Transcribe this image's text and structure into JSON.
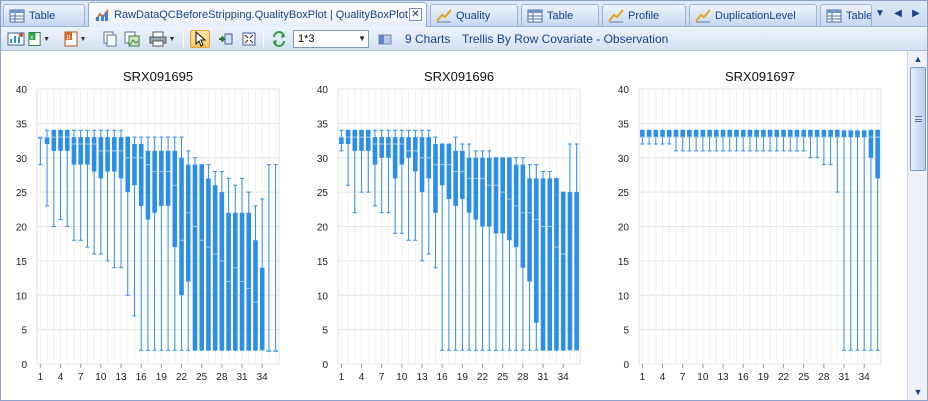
{
  "tabs": [
    {
      "label": "Table",
      "icon": "table-icon",
      "active": false
    },
    {
      "label": "RawDataQCBeforeStripping.QualityBoxPlot | QualityBoxPlot",
      "icon": "boxplot-icon",
      "active": true,
      "closable": true
    },
    {
      "label": "Quality",
      "icon": "chart-icon",
      "active": false
    },
    {
      "label": "Table",
      "icon": "table-icon",
      "active": false
    },
    {
      "label": "Profile",
      "icon": "chart-icon",
      "active": false
    },
    {
      "label": "DuplicationLevel",
      "icon": "chart-icon",
      "active": false
    },
    {
      "label": "Table",
      "icon": "table-icon",
      "active": false
    }
  ],
  "toolbar": {
    "layout_value": "1*3",
    "charts_count_label": "9 Charts",
    "trellis_label": "Trellis By Row Covariate - Observation"
  },
  "colors": {
    "box": "#2b8ee8",
    "whisker": "#2b8ee8",
    "grid": "#e6e6e6"
  },
  "chart_data": [
    {
      "type": "boxplot",
      "title": "SRX091695",
      "ylim": [
        0,
        40
      ],
      "yticks": [
        0,
        5,
        10,
        15,
        20,
        25,
        30,
        35,
        40
      ],
      "xtick_labels": [
        "1",
        "4",
        "7",
        "10",
        "13",
        "16",
        "19",
        "22",
        "25",
        "28",
        "31",
        "34"
      ],
      "x": [
        1,
        2,
        3,
        4,
        5,
        6,
        7,
        8,
        9,
        10,
        11,
        12,
        13,
        14,
        15,
        16,
        17,
        18,
        19,
        20,
        21,
        22,
        23,
        24,
        25,
        26,
        27,
        28,
        29,
        30,
        31,
        32,
        33,
        34,
        35,
        36
      ],
      "boxes": [
        [
          29,
          33,
          33,
          33,
          33
        ],
        [
          23,
          32,
          33,
          33,
          34
        ],
        [
          20,
          31,
          33,
          34,
          34
        ],
        [
          21,
          31,
          33,
          34,
          34
        ],
        [
          20,
          31,
          33,
          34,
          34
        ],
        [
          18,
          29,
          32,
          33,
          34
        ],
        [
          18,
          29,
          32,
          33,
          34
        ],
        [
          17,
          29,
          32,
          33,
          34
        ],
        [
          16,
          28,
          32,
          33,
          34
        ],
        [
          16,
          27,
          31,
          33,
          34
        ],
        [
          15,
          28,
          31,
          33,
          34
        ],
        [
          14,
          28,
          31,
          33,
          34
        ],
        [
          14,
          27,
          31,
          33,
          34
        ],
        [
          10,
          25,
          30,
          33,
          33
        ],
        [
          7,
          26,
          30,
          32,
          33
        ],
        [
          2,
          23,
          30,
          32,
          33
        ],
        [
          2,
          21,
          29,
          31,
          33
        ],
        [
          2,
          22,
          28,
          31,
          33
        ],
        [
          2,
          23,
          28,
          31,
          33
        ],
        [
          2,
          23,
          28,
          31,
          33
        ],
        [
          2,
          17,
          26,
          31,
          33
        ],
        [
          2,
          10,
          18,
          30,
          33
        ],
        [
          2,
          12,
          22,
          29,
          31
        ],
        [
          2,
          2,
          20,
          29,
          30
        ],
        [
          2,
          2,
          18,
          29,
          29
        ],
        [
          2,
          2,
          17,
          27,
          29
        ],
        [
          2,
          2,
          16,
          26,
          28
        ],
        [
          2,
          2,
          15,
          25,
          28
        ],
        [
          2,
          2,
          12,
          22,
          27
        ],
        [
          2,
          2,
          14,
          22,
          26
        ],
        [
          2,
          2,
          12,
          22,
          27
        ],
        [
          2,
          2,
          11,
          22,
          25
        ],
        [
          2,
          2,
          9,
          18,
          23
        ],
        [
          2,
          2,
          2,
          14,
          24
        ],
        [
          2,
          2,
          2,
          2,
          29
        ],
        [
          2,
          2,
          2,
          2,
          29
        ]
      ]
    },
    {
      "type": "boxplot",
      "title": "SRX091696",
      "ylim": [
        0,
        40
      ],
      "yticks": [
        0,
        5,
        10,
        15,
        20,
        25,
        30,
        35,
        40
      ],
      "xtick_labels": [
        "1",
        "4",
        "7",
        "10",
        "13",
        "16",
        "19",
        "22",
        "25",
        "28",
        "31",
        "34"
      ],
      "x": [
        1,
        2,
        3,
        4,
        5,
        6,
        7,
        8,
        9,
        10,
        11,
        12,
        13,
        14,
        15,
        16,
        17,
        18,
        19,
        20,
        21,
        22,
        23,
        24,
        25,
        26,
        27,
        28,
        29,
        30,
        31,
        32,
        33,
        34,
        35,
        36
      ],
      "boxes": [
        [
          31,
          32,
          33,
          33,
          34
        ],
        [
          26,
          32,
          33,
          34,
          34
        ],
        [
          22,
          31,
          33,
          34,
          34
        ],
        [
          25,
          31,
          33,
          34,
          34
        ],
        [
          25,
          31,
          33,
          34,
          34
        ],
        [
          23,
          29,
          32,
          33,
          34
        ],
        [
          22,
          30,
          32,
          33,
          34
        ],
        [
          22,
          30,
          32,
          33,
          34
        ],
        [
          19,
          27,
          32,
          33,
          34
        ],
        [
          19,
          29,
          32,
          33,
          34
        ],
        [
          18,
          30,
          31,
          33,
          34
        ],
        [
          18,
          28,
          31,
          33,
          34
        ],
        [
          15,
          25,
          30,
          33,
          34
        ],
        [
          16,
          27,
          30,
          33,
          34
        ],
        [
          14,
          22,
          29,
          32,
          33
        ],
        [
          2,
          26,
          29,
          32,
          32
        ],
        [
          2,
          24,
          29,
          32,
          32
        ],
        [
          2,
          23,
          28,
          31,
          33
        ],
        [
          2,
          24,
          28,
          31,
          32
        ],
        [
          2,
          22,
          27,
          30,
          32
        ],
        [
          2,
          21,
          27,
          30,
          31
        ],
        [
          2,
          20,
          27,
          30,
          31
        ],
        [
          2,
          20,
          26,
          30,
          31
        ],
        [
          2,
          19,
          26,
          30,
          30
        ],
        [
          2,
          19,
          25,
          30,
          30
        ],
        [
          2,
          18,
          24,
          30,
          30
        ],
        [
          2,
          17,
          23,
          29,
          30
        ],
        [
          2,
          14,
          22,
          29,
          30
        ],
        [
          2,
          12,
          22,
          27,
          29
        ],
        [
          2,
          6,
          21,
          27,
          29
        ],
        [
          2,
          2,
          20,
          27,
          28
        ],
        [
          2,
          2,
          20,
          27,
          28
        ],
        [
          2,
          2,
          17,
          27,
          27
        ],
        [
          2,
          2,
          16,
          25,
          25
        ],
        [
          2,
          2,
          2,
          25,
          32
        ],
        [
          2,
          2,
          2,
          25,
          32
        ]
      ]
    },
    {
      "type": "boxplot",
      "title": "SRX091697",
      "ylim": [
        0,
        40
      ],
      "yticks": [
        0,
        5,
        10,
        15,
        20,
        25,
        30,
        35,
        40
      ],
      "xtick_labels": [
        "1",
        "4",
        "7",
        "10",
        "13",
        "16",
        "19",
        "22",
        "25",
        "28",
        "31",
        "34"
      ],
      "x": [
        1,
        2,
        3,
        4,
        5,
        6,
        7,
        8,
        9,
        10,
        11,
        12,
        13,
        14,
        15,
        16,
        17,
        18,
        19,
        20,
        21,
        22,
        23,
        24,
        25,
        26,
        27,
        28,
        29,
        30,
        31,
        32,
        33,
        34,
        35,
        36
      ],
      "boxes": [
        [
          32,
          33,
          33,
          34,
          34
        ],
        [
          32,
          33,
          33,
          34,
          34
        ],
        [
          32,
          33,
          33,
          34,
          34
        ],
        [
          32,
          33,
          33,
          34,
          34
        ],
        [
          32,
          33,
          33,
          34,
          34
        ],
        [
          31,
          33,
          33,
          34,
          34
        ],
        [
          31,
          33,
          33,
          34,
          34
        ],
        [
          31,
          33,
          33,
          34,
          34
        ],
        [
          31,
          33,
          33,
          34,
          34
        ],
        [
          31,
          33,
          33,
          34,
          34
        ],
        [
          31,
          33,
          33,
          34,
          34
        ],
        [
          31,
          33,
          33,
          34,
          34
        ],
        [
          31,
          33,
          33,
          34,
          34
        ],
        [
          31,
          33,
          33,
          34,
          34
        ],
        [
          31,
          33,
          33,
          34,
          34
        ],
        [
          31,
          33,
          33,
          34,
          34
        ],
        [
          31,
          33,
          33,
          34,
          34
        ],
        [
          31,
          33,
          33,
          34,
          34
        ],
        [
          31,
          33,
          33,
          34,
          34
        ],
        [
          31,
          33,
          33,
          34,
          34
        ],
        [
          31,
          33,
          33,
          34,
          34
        ],
        [
          31,
          33,
          33,
          34,
          34
        ],
        [
          31,
          33,
          33,
          34,
          34
        ],
        [
          31,
          33,
          33,
          34,
          34
        ],
        [
          31,
          33,
          33,
          34,
          34
        ],
        [
          30,
          33,
          33,
          34,
          34
        ],
        [
          30,
          33,
          33,
          34,
          34
        ],
        [
          29,
          33,
          33,
          34,
          34
        ],
        [
          29,
          33,
          33,
          34,
          34
        ],
        [
          25,
          33,
          33,
          34,
          34
        ],
        [
          2,
          33,
          34,
          34,
          34
        ],
        [
          2,
          33,
          34,
          34,
          34
        ],
        [
          2,
          33,
          34,
          34,
          34
        ],
        [
          2,
          33,
          34,
          34,
          34
        ],
        [
          2,
          30,
          33,
          34,
          34
        ],
        [
          2,
          27,
          33,
          34,
          34
        ]
      ]
    }
  ]
}
